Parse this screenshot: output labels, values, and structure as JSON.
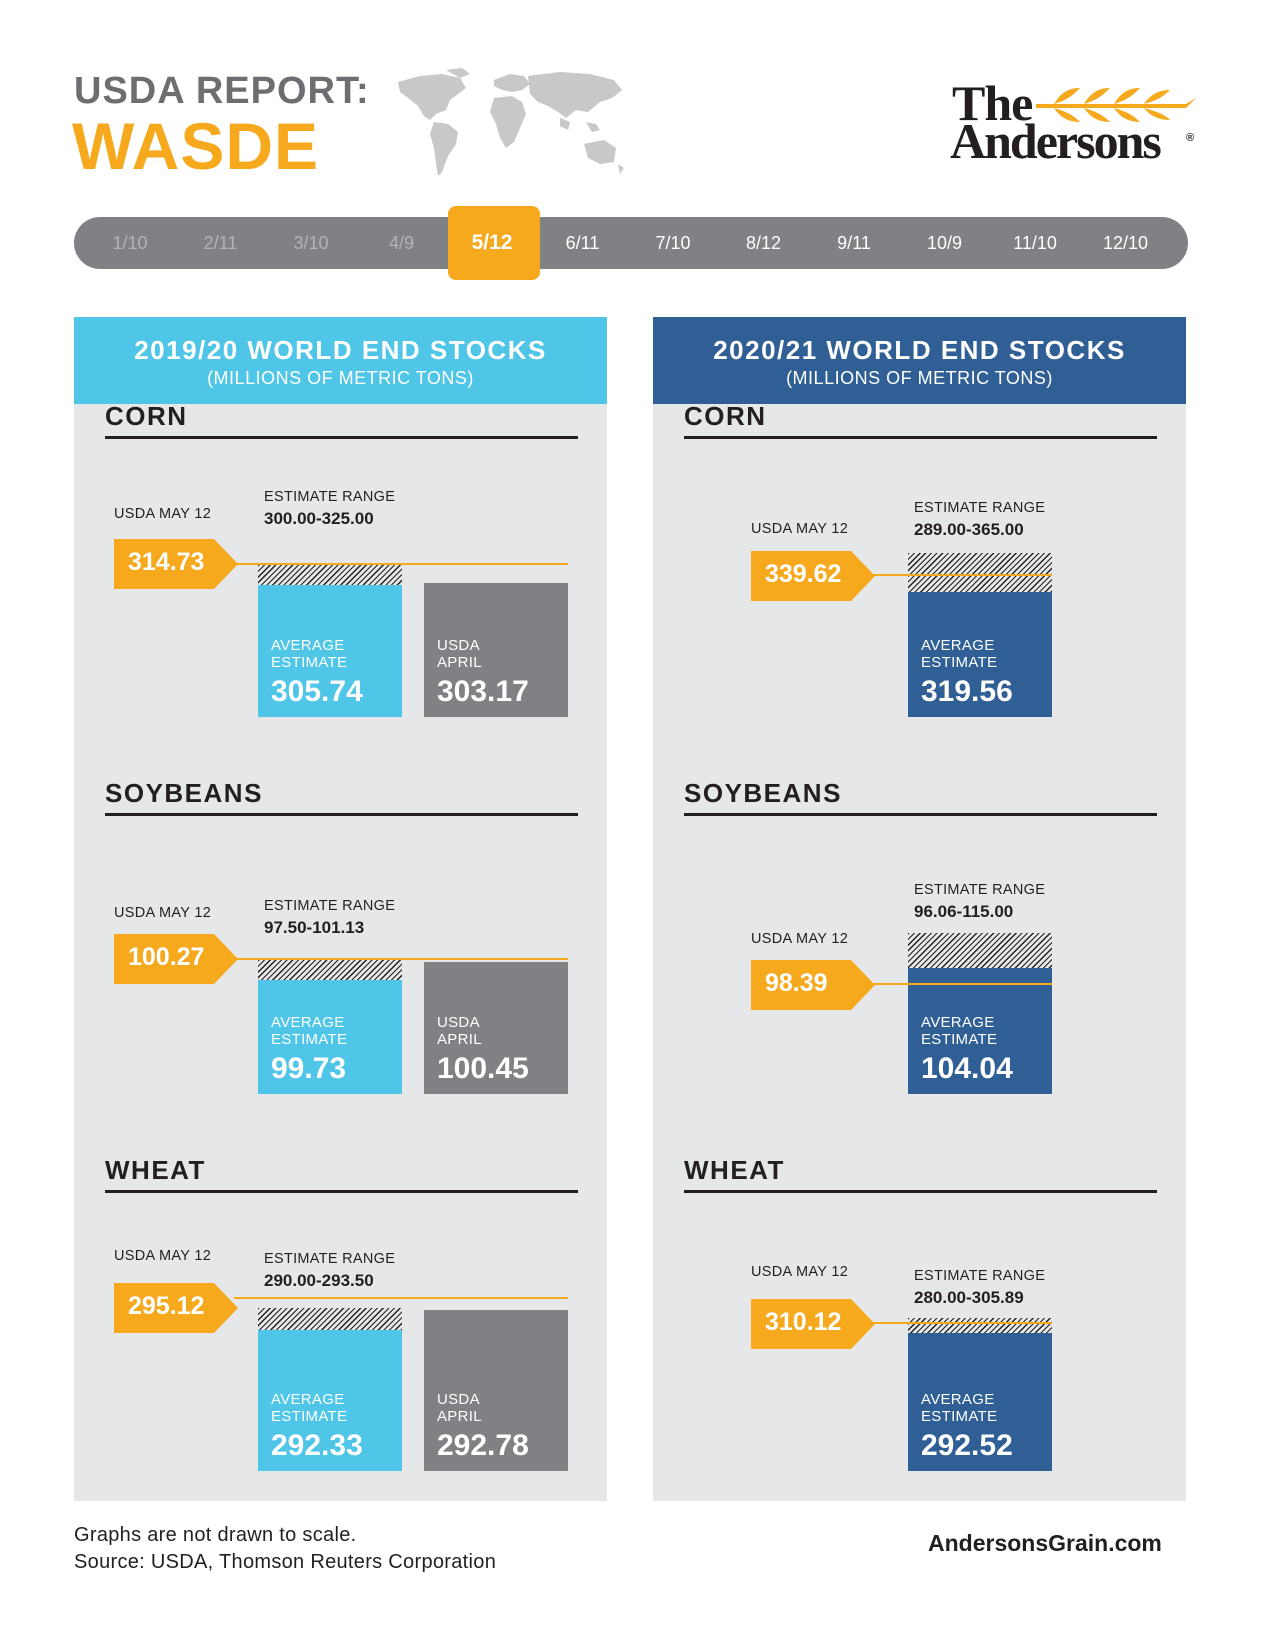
{
  "header": {
    "line1": "USDA REPORT:",
    "line2": "WASDE",
    "logo_the": "The",
    "logo_andersons": "Andersons",
    "logo_reg": "®"
  },
  "timeline": {
    "items": [
      "1/10",
      "2/11",
      "3/10",
      "4/9",
      "5/12",
      "6/11",
      "7/10",
      "8/12",
      "9/11",
      "10/9",
      "11/10",
      "12/10"
    ],
    "active_index": 4
  },
  "panels": [
    {
      "title": "2019/20 WORLD END STOCKS",
      "subtitle": "(MILLIONS OF METRIC TONS)",
      "color": "#4fc6e8"
    },
    {
      "title": "2020/21 WORLD END STOCKS",
      "subtitle": "(MILLIONS OF METRIC TONS)",
      "color": "#2f5f95"
    }
  ],
  "labels": {
    "usda": "USDA MAY 12",
    "range": "ESTIMATE RANGE",
    "avg1": "AVERAGE",
    "avg2": "ESTIMATE",
    "apr1": "USDA",
    "apr2": "APRIL"
  },
  "chart_data": [
    {
      "type": "bar",
      "title": "2019/20 WORLD END STOCKS",
      "subtitle": "(MILLIONS OF METRIC TONS)",
      "groups": [
        {
          "commodity": "CORN",
          "usda_may12": "314.73",
          "estimate_range": "300.00-325.00",
          "average_estimate": "305.74",
          "usda_april": "303.17"
        },
        {
          "commodity": "SOYBEANS",
          "usda_may12": "100.27",
          "estimate_range": "97.50-101.13",
          "average_estimate": "99.73",
          "usda_april": "100.45"
        },
        {
          "commodity": "WHEAT",
          "usda_may12": "295.12",
          "estimate_range": "290.00-293.50",
          "average_estimate": "292.33",
          "usda_april": "292.78"
        }
      ]
    },
    {
      "type": "bar",
      "title": "2020/21 WORLD END STOCKS",
      "subtitle": "(MILLIONS OF METRIC TONS)",
      "groups": [
        {
          "commodity": "CORN",
          "usda_may12": "339.62",
          "estimate_range": "289.00-365.00",
          "average_estimate": "319.56"
        },
        {
          "commodity": "SOYBEANS",
          "usda_may12": "98.39",
          "estimate_range": "96.06-115.00",
          "average_estimate": "104.04"
        },
        {
          "commodity": "WHEAT",
          "usda_may12": "310.12",
          "estimate_range": "280.00-305.89",
          "average_estimate": "292.52"
        }
      ]
    }
  ],
  "colors": {
    "accent": "#f6a91c",
    "light_blue": "#4fc6e8",
    "dark_blue": "#2f5f95",
    "gray_bar": "#808184",
    "panel_bg": "#e6e7e8"
  },
  "footer": {
    "note": "Graphs are not drawn to scale.",
    "source": "Source: USDA, Thomson Reuters Corporation",
    "url": "AndersonsGrain.com"
  }
}
